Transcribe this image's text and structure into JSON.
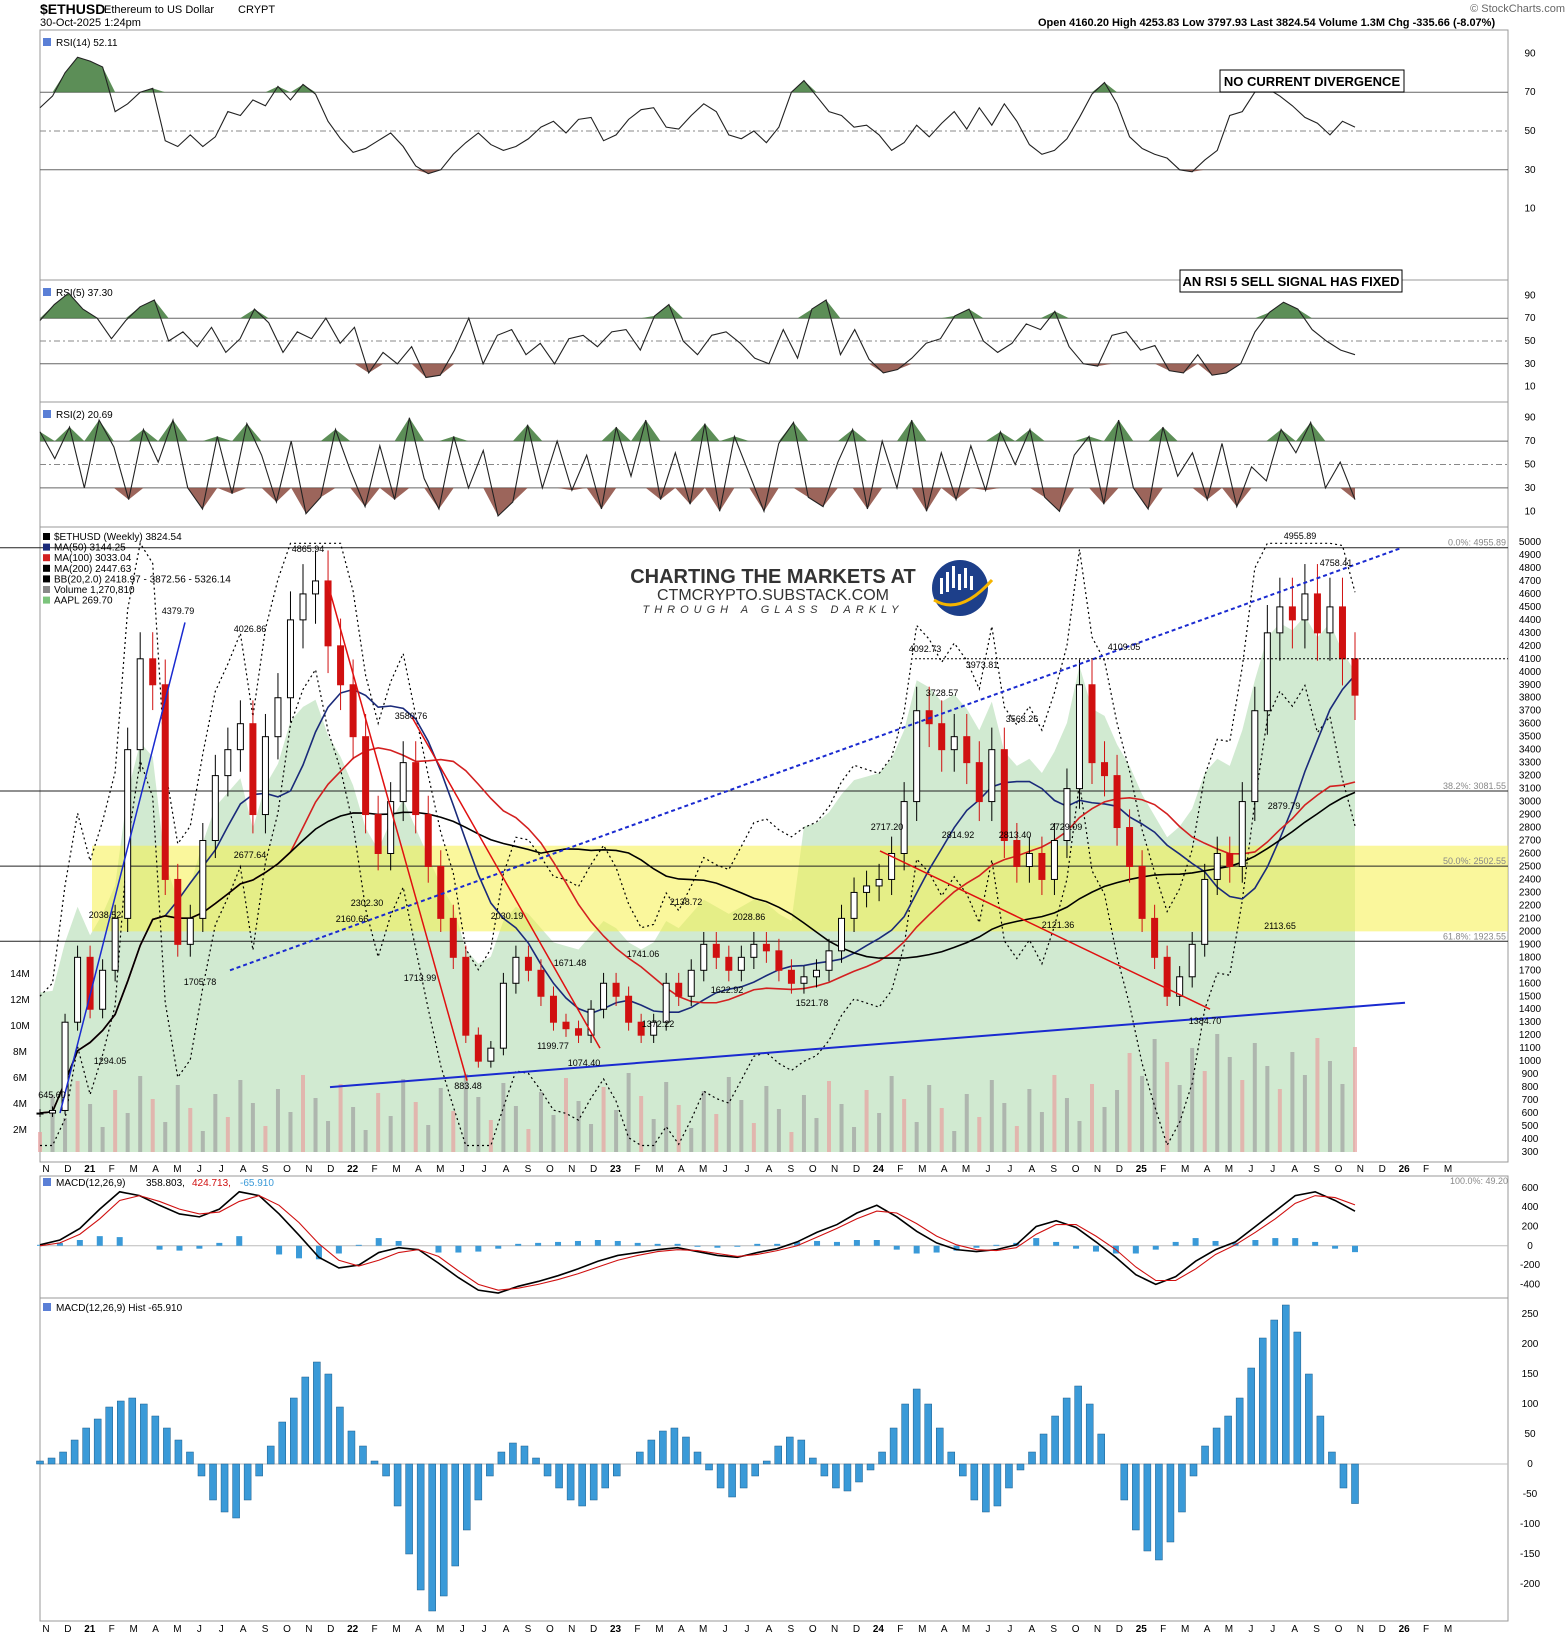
{
  "header": {
    "symbol": "$ETHUSD",
    "description": "Ethereum to US Dollar",
    "exchange": "CRYPT",
    "datetime": "30-Oct-2025 1:24pm",
    "ohlc": "Open 4160.20  High 4253.83  Low 3797.93  Last 3824.54  Volume 1.3M  Chg -335.66 (-8.07%)",
    "watermark": "© StockCharts.com"
  },
  "branding": {
    "line1": "CHARTING THE MARKETS AT",
    "line2": "CTMCRYPTO.SUBSTACK.COM",
    "line3": "THROUGH A GLASS DARKLY"
  },
  "callouts": {
    "rsi14": "NO CURRENT DIVERGENCE",
    "rsi5": "AN RSI 5 SELL SIGNAL HAS FIXED"
  },
  "time_axis": [
    "N",
    "D",
    "21",
    "F",
    "M",
    "A",
    "M",
    "J",
    "J",
    "A",
    "S",
    "O",
    "N",
    "D",
    "22",
    "F",
    "M",
    "A",
    "M",
    "J",
    "J",
    "A",
    "S",
    "O",
    "N",
    "D",
    "23",
    "F",
    "M",
    "A",
    "M",
    "J",
    "J",
    "A",
    "S",
    "O",
    "N",
    "D",
    "24",
    "F",
    "M",
    "A",
    "M",
    "J",
    "J",
    "A",
    "S",
    "O",
    "N",
    "D",
    "25",
    "F",
    "M",
    "A",
    "M",
    "J",
    "J",
    "A",
    "S",
    "O",
    "N",
    "D",
    "26",
    "F",
    "M"
  ],
  "chart_data": [
    {
      "type": "line",
      "title": "RSI(14) 52.11",
      "ylim": [
        0,
        100
      ],
      "yticks": [
        90,
        70,
        50,
        30,
        10
      ],
      "series": [
        {
          "name": "RSI(14)",
          "values": [
            62,
            68,
            80,
            88,
            86,
            83,
            60,
            64,
            70,
            72,
            45,
            42,
            48,
            42,
            47,
            60,
            58,
            66,
            63,
            73,
            66,
            74,
            69,
            55,
            46,
            39,
            41,
            45,
            49,
            42,
            32,
            28,
            30,
            38,
            44,
            49,
            43,
            40,
            42,
            46,
            52,
            55,
            49,
            56,
            57,
            45,
            48,
            56,
            61,
            62,
            52,
            51,
            58,
            64,
            60,
            48,
            46,
            50,
            44,
            52,
            70,
            76,
            68,
            60,
            58,
            52,
            53,
            48,
            40,
            44,
            53,
            47,
            54,
            60,
            51,
            62,
            53,
            64,
            55,
            43,
            38,
            40,
            46,
            57,
            69,
            75,
            64,
            47,
            41,
            38,
            36,
            30,
            29,
            35,
            40,
            58,
            60,
            70,
            72,
            68,
            63,
            57,
            54,
            48,
            55,
            52
          ]
        }
      ]
    },
    {
      "type": "area",
      "title": "RSI(5) 37.30",
      "ylim": [
        0,
        100
      ],
      "yticks": [
        90,
        70,
        50,
        30,
        10
      ],
      "series": [
        {
          "name": "RSI(5)",
          "values": [
            68,
            82,
            92,
            78,
            70,
            52,
            68,
            80,
            86,
            50,
            58,
            45,
            62,
            40,
            52,
            78,
            66,
            40,
            58,
            52,
            70,
            48,
            62,
            22,
            40,
            30,
            45,
            18,
            20,
            42,
            70,
            30,
            55,
            60,
            38,
            48,
            30,
            52,
            55,
            45,
            58,
            60,
            42,
            72,
            82,
            50,
            38,
            55,
            58,
            48,
            35,
            30,
            60,
            35,
            78,
            86,
            38,
            60,
            34,
            22,
            25,
            35,
            48,
            52,
            72,
            78,
            50,
            40,
            48,
            65,
            60,
            76,
            45,
            30,
            28,
            55,
            58,
            42,
            46,
            24,
            22,
            38,
            20,
            22,
            30,
            58,
            75,
            84,
            78,
            60,
            50,
            42,
            38
          ]
        }
      ]
    },
    {
      "type": "area",
      "title": "RSI(2) 20.69",
      "ylim": [
        0,
        100
      ],
      "yticks": [
        90,
        70,
        50,
        30,
        10
      ],
      "series": [
        {
          "name": "RSI(2)",
          "values": [
            78,
            55,
            82,
            30,
            88,
            65,
            20,
            80,
            52,
            88,
            30,
            12,
            74,
            25,
            85,
            58,
            18,
            70,
            8,
            22,
            80,
            45,
            14,
            66,
            20,
            90,
            38,
            12,
            74,
            30,
            62,
            6,
            18,
            84,
            30,
            70,
            28,
            58,
            12,
            82,
            40,
            88,
            20,
            60,
            16,
            85,
            10,
            74,
            42,
            10,
            68,
            86,
            22,
            14,
            52,
            80,
            12,
            70,
            30,
            88,
            10,
            60,
            20,
            66,
            28,
            78,
            50,
            80,
            22,
            10,
            58,
            74,
            16,
            88,
            30,
            12,
            82,
            40,
            60,
            20,
            68,
            14,
            48,
            36,
            80,
            60,
            86,
            30,
            52,
            20
          ]
        }
      ]
    },
    {
      "type": "bar",
      "title": "$ETHUSD (Weekly) 3824.54",
      "ylim": [
        300,
        5000
      ],
      "yticks": [
        5000,
        4900,
        4800,
        4700,
        4600,
        4500,
        4400,
        4300,
        4200,
        4100,
        4000,
        3900,
        3800,
        3700,
        3600,
        3500,
        3400,
        3300,
        3200,
        3100,
        3000,
        2900,
        2800,
        2700,
        2600,
        2500,
        2400,
        2300,
        2200,
        2100,
        2000,
        1900,
        1800,
        1700,
        1600,
        1500,
        1400,
        1300,
        1200,
        1100,
        1000,
        900,
        800,
        700,
        600,
        500,
        400,
        300
      ],
      "volume_ticks": [
        "14M",
        "12M",
        "10M",
        "8M",
        "6M",
        "4M",
        "2M"
      ],
      "legend": [
        "$ETHUSD (Weekly) 3824.54",
        "MA(50) 3144.25",
        "MA(100) 3033.04",
        "MA(200) 2447.63",
        "BB(20,2.0) 2418.97 - 3872.56 - 5326.14",
        "Volume 1,270,810",
        "AAPL 269.70"
      ],
      "fib_labels": [
        "0.0%: 4955.89",
        "38.2%: 3081.55",
        "50.0%: 2502.55",
        "61.8%: 1923.55",
        "100.0%: 49.20"
      ],
      "price_labels": [
        "645.60",
        "2038.52",
        "1294.05",
        "4379.79",
        "4026.86",
        "1705.78",
        "2677.64",
        "4865.94",
        "2302.30",
        "2160.66",
        "3580.76",
        "1713.99",
        "883.48",
        "2030.19",
        "1199.77",
        "1074.40",
        "1671.48",
        "1741.06",
        "1372.22",
        "2138.72",
        "2028.86",
        "1622.92",
        "1521.78",
        "2717.20",
        "4092.73",
        "3728.57",
        "3973.81",
        "2814.92",
        "3563.26",
        "2813.40",
        "2729.09",
        "2121.36",
        "4109.05",
        "1384.70",
        "2879.79",
        "2113.65",
        "4955.89",
        "4758.41"
      ],
      "close": [
        600,
        620,
        1300,
        1800,
        1400,
        1700,
        2100,
        3400,
        4100,
        3900,
        2400,
        1900,
        2100,
        2700,
        3200,
        3400,
        3600,
        2900,
        3500,
        3800,
        4400,
        4600,
        4700,
        4200,
        3900,
        3500,
        2900,
        2600,
        3000,
        3300,
        2900,
        2500,
        2100,
        1800,
        1200,
        1000,
        1100,
        1600,
        1800,
        1700,
        1500,
        1300,
        1250,
        1200,
        1400,
        1600,
        1500,
        1300,
        1200,
        1300,
        1600,
        1500,
        1700,
        1900,
        1800,
        1700,
        1800,
        1900,
        1850,
        1700,
        1600,
        1650,
        1700,
        1850,
        2100,
        2300,
        2350,
        2400,
        2600,
        3000,
        3700,
        3600,
        3400,
        3500,
        3300,
        3000,
        3400,
        2700,
        2500,
        2600,
        2400,
        2700,
        3100,
        3900,
        3300,
        3200,
        2800,
        2500,
        2100,
        1800,
        1500,
        1650,
        1900,
        2400,
        2600,
        2500,
        3000,
        3700,
        4300,
        4500,
        4400,
        4600,
        4300,
        4500,
        4100,
        3820
      ],
      "series": [
        {
          "name": "MA(50)",
          "value": 3144.25
        },
        {
          "name": "MA(100)",
          "value": 3033.04
        },
        {
          "name": "MA(200)",
          "value": 2447.63
        },
        {
          "name": "BB(20,2.0)",
          "value": "2418.97 - 3872.56 - 5326.14"
        },
        {
          "name": "Volume",
          "value": 1270810
        },
        {
          "name": "AAPL",
          "value": 269.7
        }
      ]
    },
    {
      "type": "line",
      "title": "MACD(12,26,9) 358.803, 424.713, -65.910",
      "title_parts": [
        "MACD(12,26,9)",
        "358.803,",
        "424.713,",
        "-65.910"
      ],
      "ylim": [
        -500,
        620
      ],
      "yticks": [
        600,
        400,
        200,
        0,
        -200,
        -400
      ],
      "series": [
        {
          "name": "MACD",
          "values": [
            10,
            60,
            180,
            380,
            560,
            520,
            420,
            330,
            300,
            380,
            560,
            520,
            330,
            110,
            -120,
            -230,
            -200,
            -70,
            -20,
            -40,
            -180,
            -330,
            -460,
            -490,
            -420,
            -370,
            -310,
            -240,
            -160,
            -100,
            -70,
            -40,
            -20,
            -60,
            -100,
            -120,
            -70,
            -30,
            40,
            140,
            220,
            340,
            420,
            300,
            150,
            30,
            -40,
            -60,
            -40,
            10,
            200,
            260,
            190,
            40,
            -120,
            -300,
            -400,
            -320,
            -160,
            -40,
            40,
            200,
            360,
            520,
            560,
            470,
            358.8
          ]
        },
        {
          "name": "Signal",
          "values": [
            0,
            30,
            120,
            280,
            470,
            520,
            460,
            380,
            330,
            350,
            460,
            520,
            420,
            240,
            20,
            -150,
            -210,
            -150,
            -70,
            -40,
            -110,
            -260,
            -400,
            -460,
            -440,
            -400,
            -350,
            -290,
            -220,
            -150,
            -100,
            -60,
            -40,
            -50,
            -80,
            -110,
            -90,
            -50,
            0,
            90,
            180,
            280,
            360,
            340,
            230,
            100,
            10,
            -40,
            -50,
            -20,
            120,
            220,
            220,
            100,
            -40,
            -220,
            -360,
            -360,
            -240,
            -90,
            10,
            140,
            280,
            440,
            520,
            500,
            424.7
          ]
        }
      ],
      "hist": [
        10,
        30,
        60,
        100,
        90,
        0,
        -40,
        -50,
        -30,
        30,
        100,
        0,
        -90,
        -130,
        -140,
        -80,
        10,
        80,
        50,
        0,
        -70,
        -70,
        -60,
        -30,
        20,
        30,
        40,
        50,
        60,
        50,
        30,
        20,
        20,
        -10,
        -20,
        -10,
        20,
        20,
        40,
        50,
        40,
        60,
        60,
        -40,
        -80,
        -70,
        -50,
        -20,
        10,
        30,
        80,
        40,
        -30,
        -60,
        -80,
        -80,
        -40,
        40,
        80,
        50,
        30,
        60,
        80,
        80,
        40,
        -30,
        -65.9
      ]
    },
    {
      "type": "bar",
      "title": "MACD(12,26,9) Hist -65.910",
      "ylim": [
        -260,
        270
      ],
      "yticks": [
        250,
        200,
        150,
        100,
        50,
        0,
        -50,
        -100,
        -150,
        -200
      ],
      "values": [
        5,
        10,
        20,
        40,
        60,
        75,
        95,
        105,
        110,
        100,
        80,
        60,
        40,
        20,
        -20,
        -60,
        -80,
        -90,
        -60,
        -20,
        30,
        70,
        110,
        145,
        170,
        150,
        95,
        55,
        30,
        5,
        -20,
        -70,
        -150,
        -210,
        -245,
        -220,
        -170,
        -110,
        -60,
        -20,
        20,
        35,
        30,
        10,
        -20,
        -40,
        -60,
        -70,
        -60,
        -40,
        -20,
        0,
        20,
        40,
        55,
        60,
        45,
        20,
        -10,
        -40,
        -55,
        -40,
        -20,
        5,
        30,
        45,
        40,
        10,
        -20,
        -40,
        -45,
        -30,
        -10,
        20,
        60,
        100,
        125,
        100,
        60,
        20,
        -20,
        -60,
        -80,
        -70,
        -40,
        -10,
        20,
        50,
        80,
        110,
        130,
        100,
        50,
        0,
        -60,
        -110,
        -145,
        -160,
        -130,
        -80,
        -20,
        30,
        60,
        80,
        110,
        160,
        210,
        240,
        265,
        220,
        150,
        80,
        20,
        -40,
        -65.91
      ]
    }
  ]
}
